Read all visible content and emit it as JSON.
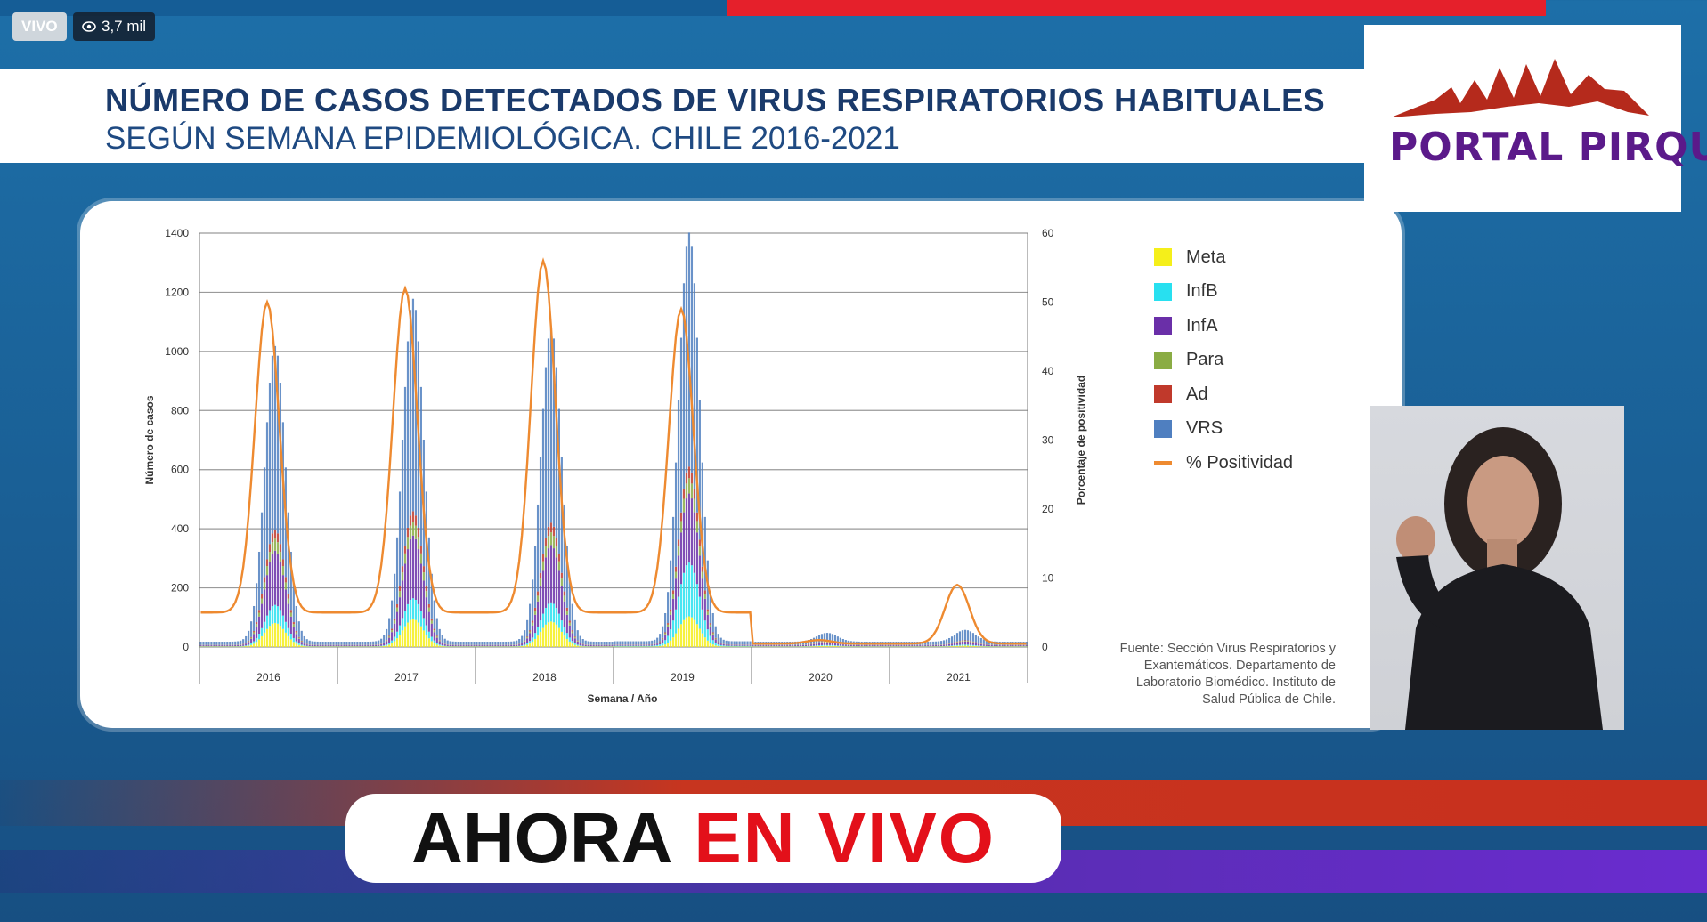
{
  "stream": {
    "live_label": "VIVO",
    "viewers": "3,7 mil"
  },
  "title": {
    "main": "NÚMERO DE CASOS DETECTADOS DE VIRUS RESPIRATORIOS HABITUALES",
    "sub": "SEGÚN SEMANA EPIDEMIOLÓGICA. CHILE 2016-2021"
  },
  "logo": {
    "text": "PORTAL PIRQUE"
  },
  "chart_data": {
    "type": "bar",
    "xlabel": "Semana / Año",
    "ylabel": "Número de casos",
    "y2label": "Porcentaje de positividad",
    "ylim": [
      0,
      1400
    ],
    "y2lim": [
      0,
      60
    ],
    "yticks": [
      0,
      200,
      400,
      600,
      800,
      1000,
      1200,
      1400
    ],
    "y2ticks": [
      0,
      10,
      20,
      30,
      40,
      50,
      60
    ],
    "years": [
      "2016",
      "2017",
      "2018",
      "2019",
      "2020",
      "2021"
    ],
    "legend_position": "right",
    "series": [
      {
        "name": "Meta",
        "color": "#f5ef1a"
      },
      {
        "name": "InfB",
        "color": "#28e0f0"
      },
      {
        "name": "InfA",
        "color": "#6a2fa8"
      },
      {
        "name": "Para",
        "color": "#8aac44"
      },
      {
        "name": "Ad",
        "color": "#c0392b"
      },
      {
        "name": "VRS",
        "color": "#4f7fc0"
      },
      {
        "name": "% Positividad",
        "color": "#ee8a30",
        "type": "line"
      }
    ],
    "yearly_peaks": [
      {
        "year": "2016",
        "total_cases": 1000,
        "positivity": 50
      },
      {
        "year": "2017",
        "total_cases": 1160,
        "positivity": 52
      },
      {
        "year": "2018",
        "total_cases": 1060,
        "positivity": 56
      },
      {
        "year": "2019",
        "total_cases": 1280,
        "positivity": 49
      },
      {
        "year": "2020",
        "total_cases": 30,
        "positivity": 1
      },
      {
        "year": "2021",
        "total_cases": 40,
        "positivity": 9
      }
    ]
  },
  "source_note": [
    "Fuente: Sección Virus Respiratorios y",
    "Exantemáticos. Departamento de",
    "Laboratorio Biomédico. Instituto de",
    "Salud Pública de Chile."
  ],
  "banner": {
    "part1": "AHORA",
    "part2": "EN VIVO"
  }
}
